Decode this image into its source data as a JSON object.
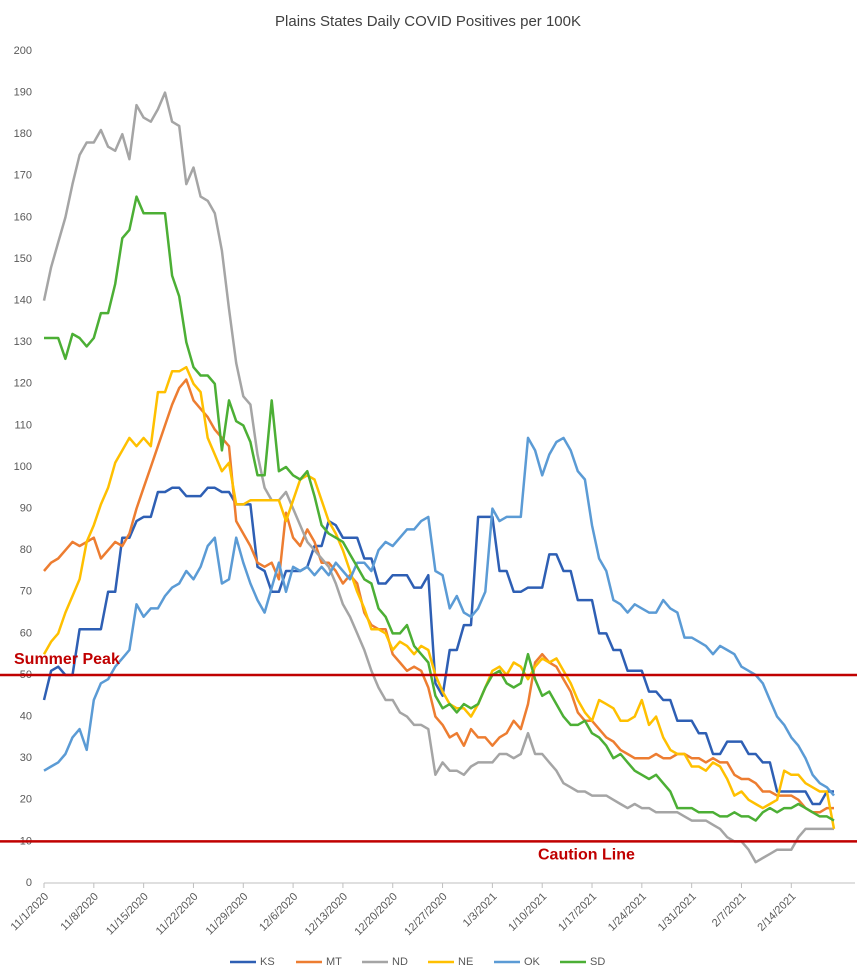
{
  "chart_data": {
    "type": "line",
    "title": "Plains States Daily COVID Positives per 100K",
    "categories": [
      "11/1/2020",
      null,
      null,
      null,
      null,
      null,
      null,
      "11/8/2020",
      null,
      null,
      null,
      null,
      null,
      null,
      "11/15/2020",
      null,
      null,
      null,
      null,
      null,
      null,
      "11/22/2020",
      null,
      null,
      null,
      null,
      null,
      null,
      "11/29/2020",
      null,
      null,
      null,
      null,
      null,
      null,
      "12/6/2020",
      null,
      null,
      null,
      null,
      null,
      null,
      "12/13/2020",
      null,
      null,
      null,
      null,
      null,
      null,
      "12/20/2020",
      null,
      null,
      null,
      null,
      null,
      null,
      "12/27/2020",
      null,
      null,
      null,
      null,
      null,
      null,
      "1/3/2021",
      null,
      null,
      null,
      null,
      null,
      null,
      "1/10/2021",
      null,
      null,
      null,
      null,
      null,
      null,
      "1/17/2021",
      null,
      null,
      null,
      null,
      null,
      null,
      "1/24/2021",
      null,
      null,
      null,
      null,
      null,
      null,
      "1/31/2021",
      null,
      null,
      null,
      null,
      null,
      null,
      "2/7/2021",
      null,
      null,
      null,
      null,
      null,
      null,
      "2/14/2021",
      null,
      null,
      null,
      null,
      null,
      null
    ],
    "series": [
      {
        "name": "KS",
        "color": "#2e5fb4",
        "values": [
          44,
          51,
          52,
          50,
          50,
          61,
          61,
          61,
          61,
          70,
          70,
          83,
          83,
          87,
          88,
          88,
          94,
          94,
          95,
          95,
          93,
          93,
          93,
          95,
          95,
          94,
          94,
          91,
          91,
          91,
          76,
          75,
          70,
          70,
          75,
          75,
          75,
          76,
          81,
          81,
          87,
          86,
          83,
          83,
          83,
          78,
          78,
          72,
          72,
          74,
          74,
          74,
          71,
          71,
          74,
          48,
          45,
          56,
          56,
          62,
          62,
          88,
          88,
          88,
          75,
          75,
          70,
          70,
          71,
          71,
          71,
          79,
          79,
          75,
          75,
          68,
          68,
          68,
          60,
          60,
          56,
          56,
          51,
          51,
          51,
          46,
          46,
          44,
          44,
          39,
          39,
          39,
          36,
          36,
          31,
          31,
          34,
          34,
          34,
          31,
          31,
          29,
          29,
          22,
          22,
          22,
          22,
          22,
          19,
          19,
          22,
          22
        ]
      },
      {
        "name": "MT",
        "color": "#ed7d31",
        "values": [
          75,
          77,
          78,
          80,
          82,
          81,
          82,
          83,
          78,
          80,
          82,
          81,
          84,
          90,
          95,
          100,
          105,
          110,
          115,
          119,
          121,
          116,
          114,
          112,
          109,
          107,
          105,
          87,
          84,
          81,
          77,
          76,
          77,
          73,
          89,
          83,
          81,
          85,
          82,
          77,
          77,
          75,
          72,
          74,
          72,
          65,
          62,
          61,
          61,
          55,
          53,
          51,
          52,
          51,
          47,
          40,
          38,
          35,
          36,
          33,
          37,
          35,
          35,
          33,
          35,
          36,
          39,
          37,
          43,
          53,
          55,
          53,
          52,
          49,
          46,
          41,
          39,
          39,
          37,
          35,
          34,
          32,
          31,
          30,
          30,
          30,
          31,
          30,
          30,
          31,
          31,
          30,
          30,
          29,
          30,
          29,
          29,
          26,
          25,
          25,
          24,
          22,
          22,
          21,
          21,
          21,
          20,
          18,
          17,
          17,
          18,
          18
        ]
      },
      {
        "name": "ND",
        "color": "#a5a5a5",
        "values": [
          140,
          148,
          154,
          160,
          168,
          175,
          178,
          178,
          181,
          177,
          176,
          180,
          174,
          187,
          184,
          183,
          186,
          190,
          183,
          182,
          168,
          172,
          165,
          164,
          161,
          152,
          138,
          125,
          117,
          115,
          103,
          95,
          92,
          92,
          94,
          90,
          86,
          82,
          80,
          78,
          76,
          72,
          67,
          64,
          60,
          56,
          51,
          47,
          44,
          44,
          41,
          40,
          38,
          38,
          37,
          26,
          29,
          27,
          27,
          26,
          28,
          29,
          29,
          29,
          31,
          31,
          30,
          31,
          36,
          31,
          31,
          29,
          27,
          24,
          23,
          22,
          22,
          21,
          21,
          21,
          20,
          19,
          18,
          19,
          18,
          18,
          17,
          17,
          17,
          17,
          16,
          15,
          15,
          15,
          14,
          13,
          11,
          10,
          10,
          8,
          5,
          6,
          7,
          8,
          8,
          8,
          11,
          13,
          13,
          13,
          13,
          13
        ]
      },
      {
        "name": "NE",
        "color": "#ffc000",
        "values": [
          55,
          58,
          60,
          65,
          69,
          73,
          82,
          86,
          91,
          95,
          101,
          104,
          107,
          105,
          107,
          105,
          118,
          118,
          123,
          123,
          124,
          120,
          118,
          107,
          103,
          99,
          101,
          91,
          91,
          92,
          92,
          92,
          92,
          92,
          87,
          92,
          97,
          98,
          97,
          92,
          87,
          84,
          80,
          75,
          70,
          66,
          61,
          61,
          60,
          56,
          58,
          57,
          55,
          57,
          56,
          50,
          46,
          43,
          42,
          42,
          40,
          43,
          47,
          51,
          52,
          50,
          53,
          52,
          49,
          52,
          54,
          53,
          54,
          51,
          48,
          44,
          41,
          39,
          44,
          43,
          42,
          39,
          39,
          40,
          44,
          38,
          40,
          35,
          32,
          31,
          31,
          28,
          28,
          27,
          29,
          28,
          25,
          21,
          22,
          20,
          19,
          18,
          19,
          20,
          27,
          26,
          26,
          24,
          23,
          22,
          22,
          13
        ]
      },
      {
        "name": "OK",
        "color": "#5b9bd5",
        "values": [
          27,
          28,
          29,
          31,
          35,
          37,
          32,
          44,
          48,
          49,
          52,
          54,
          56,
          67,
          64,
          66,
          66,
          69,
          71,
          72,
          75,
          73,
          76,
          81,
          83,
          72,
          73,
          83,
          77,
          72,
          68,
          65,
          71,
          77,
          70,
          76,
          75,
          76,
          74,
          76,
          74,
          77,
          75,
          73,
          77,
          77,
          75,
          80,
          82,
          81,
          83,
          85,
          85,
          87,
          88,
          75,
          74,
          66,
          69,
          65,
          64,
          66,
          70,
          90,
          87,
          88,
          88,
          88,
          107,
          104,
          98,
          103,
          106,
          107,
          104,
          99,
          97,
          86,
          78,
          75,
          68,
          67,
          65,
          67,
          66,
          65,
          65,
          68,
          66,
          65,
          59,
          59,
          58,
          57,
          55,
          57,
          56,
          55,
          52,
          51,
          50,
          48,
          44,
          40,
          38,
          35,
          33,
          30,
          26,
          24,
          23,
          21
        ]
      },
      {
        "name": "SD",
        "color": "#4caf35",
        "values": [
          131,
          131,
          131,
          126,
          132,
          131,
          129,
          131,
          137,
          137,
          144,
          155,
          157,
          165,
          161,
          161,
          161,
          161,
          146,
          141,
          130,
          124,
          122,
          122,
          120,
          104,
          116,
          111,
          110,
          106,
          98,
          98,
          116,
          99,
          100,
          98,
          97,
          99,
          93,
          86,
          84,
          83,
          82,
          79,
          76,
          73,
          72,
          66,
          64,
          60,
          60,
          62,
          57,
          55,
          53,
          45,
          42,
          43,
          41,
          43,
          42,
          43,
          47,
          50,
          51,
          48,
          47,
          48,
          55,
          49,
          45,
          46,
          43,
          40,
          38,
          38,
          39,
          36,
          35,
          33,
          30,
          31,
          29,
          27,
          26,
          25,
          26,
          24,
          22,
          18,
          18,
          18,
          17,
          17,
          17,
          16,
          16,
          17,
          16,
          16,
          15,
          17,
          18,
          17,
          18,
          18,
          19,
          18,
          17,
          16,
          16,
          15
        ]
      }
    ],
    "ylim": [
      0,
      200
    ],
    "yticks": [
      0,
      10,
      20,
      30,
      40,
      50,
      60,
      70,
      80,
      90,
      100,
      110,
      120,
      130,
      140,
      150,
      160,
      170,
      180,
      190,
      200
    ],
    "grid": false,
    "legend": "bottom",
    "reference_lines": [
      {
        "value": 50,
        "label": "Summer Peak",
        "color": "#c00000"
      },
      {
        "value": 10,
        "label": "Caution Line",
        "color": "#c00000"
      }
    ]
  }
}
